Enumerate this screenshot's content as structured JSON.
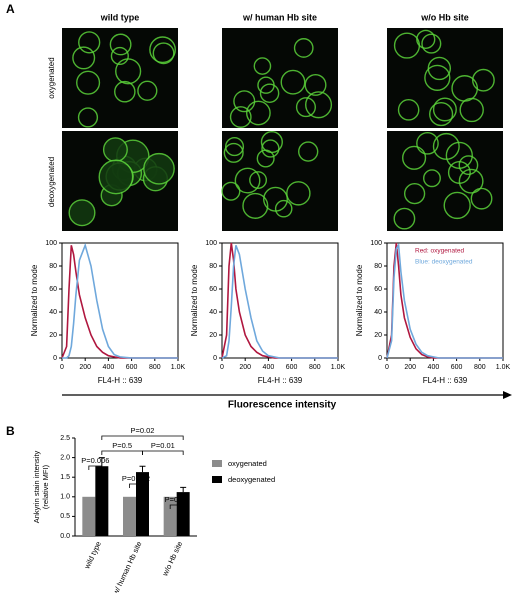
{
  "panel_labels": [
    "A",
    "B"
  ],
  "columns": [
    "wild type",
    "w/ human Hb site",
    "w/o Hb site"
  ],
  "rows": [
    "oxygenated",
    "deoxygenated"
  ],
  "axis_caption": "Fluorescence intensity",
  "chart_data": [
    {
      "type": "line",
      "xlabel": "FL4-H :: 639",
      "ylabel": "Normalized to mode",
      "x": [
        0,
        40,
        60,
        80,
        100,
        120,
        150,
        200,
        250,
        300,
        350,
        400,
        450,
        500,
        600,
        1000
      ],
      "xlim": [
        0,
        1000
      ],
      "xticks": [
        0,
        200,
        400,
        600,
        800,
        {
          "value": 1000,
          "label": "1.0K"
        }
      ],
      "ylim": [
        0,
        100
      ],
      "yticks": [
        0,
        20,
        40,
        60,
        80,
        100
      ],
      "series": [
        {
          "color": "#b0173f",
          "values": [
            0,
            10,
            60,
            98,
            90,
            75,
            55,
            35,
            20,
            10,
            5,
            2,
            1,
            0,
            0,
            0
          ]
        },
        {
          "color": "#6fa8dc",
          "values": [
            0,
            0,
            2,
            10,
            30,
            55,
            85,
            98,
            80,
            50,
            25,
            10,
            3,
            1,
            0,
            0
          ]
        }
      ]
    },
    {
      "type": "line",
      "xlabel": "FL4-H :: 639",
      "ylabel": "Normalized to mode",
      "x": [
        0,
        40,
        60,
        80,
        100,
        120,
        150,
        200,
        250,
        300,
        350,
        400,
        450,
        500,
        600,
        1000
      ],
      "xlim": [
        0,
        1000
      ],
      "xticks": [
        0,
        200,
        400,
        600,
        800,
        {
          "value": 1000,
          "label": "1.0K"
        }
      ],
      "ylim": [
        0,
        100
      ],
      "yticks": [
        0,
        20,
        40,
        60,
        80,
        100
      ],
      "series": [
        {
          "color": "#b0173f",
          "values": [
            0,
            20,
            80,
            100,
            85,
            60,
            40,
            20,
            10,
            5,
            2,
            1,
            0,
            0,
            0,
            0
          ]
        },
        {
          "color": "#6fa8dc",
          "values": [
            0,
            2,
            15,
            45,
            80,
            98,
            90,
            60,
            35,
            15,
            6,
            2,
            1,
            0,
            0,
            0
          ]
        }
      ]
    },
    {
      "type": "line",
      "xlabel": "FL4-H :: 639",
      "ylabel": "Normalized to mode",
      "x": [
        0,
        40,
        60,
        80,
        100,
        120,
        150,
        200,
        250,
        300,
        350,
        400,
        450,
        500,
        600,
        1000
      ],
      "xlim": [
        0,
        1000
      ],
      "xticks": [
        0,
        200,
        400,
        600,
        800,
        {
          "value": 1000,
          "label": "1.0K"
        }
      ],
      "ylim": [
        0,
        100
      ],
      "yticks": [
        0,
        20,
        40,
        60,
        80,
        100
      ],
      "annotations": [
        "Red: oxygenated",
        "Blue: deoxygenated"
      ],
      "series": [
        {
          "color": "#b0173f",
          "values": [
            0,
            20,
            80,
            100,
            80,
            55,
            35,
            18,
            8,
            3,
            1,
            0,
            0,
            0,
            0,
            0
          ]
        },
        {
          "color": "#6fa8dc",
          "values": [
            0,
            15,
            70,
            95,
            98,
            75,
            50,
            25,
            12,
            5,
            2,
            1,
            0,
            0,
            0,
            0
          ]
        }
      ]
    },
    {
      "type": "bar",
      "ylabel": [
        "Ankyrin stain intensity",
        "(relative MFI)"
      ],
      "categories": [
        "wild type",
        "w/ human Hb site",
        "w/o Hb site"
      ],
      "ylim": [
        0,
        2.5
      ],
      "yticks": [
        {
          "value": 0,
          "label": "0.0"
        },
        0.5,
        {
          "value": 1,
          "label": "1.0"
        },
        1.5,
        {
          "value": 2,
          "label": "2.0"
        },
        2.5
      ],
      "legend": "right",
      "annotations": [
        "P=0.006",
        "P=0.002",
        "P=0.21",
        "P=0.5",
        "P=0.01",
        "P=0.02"
      ],
      "series": [
        {
          "name": "oxygenated",
          "color": "#8c8c8c",
          "values": [
            1,
            1,
            1
          ]
        },
        {
          "name": "deoxygenated",
          "color": "#000000",
          "values": [
            1.78,
            1.63,
            1.12
          ],
          "errors": [
            0.22,
            0.15,
            0.12
          ]
        }
      ]
    }
  ]
}
